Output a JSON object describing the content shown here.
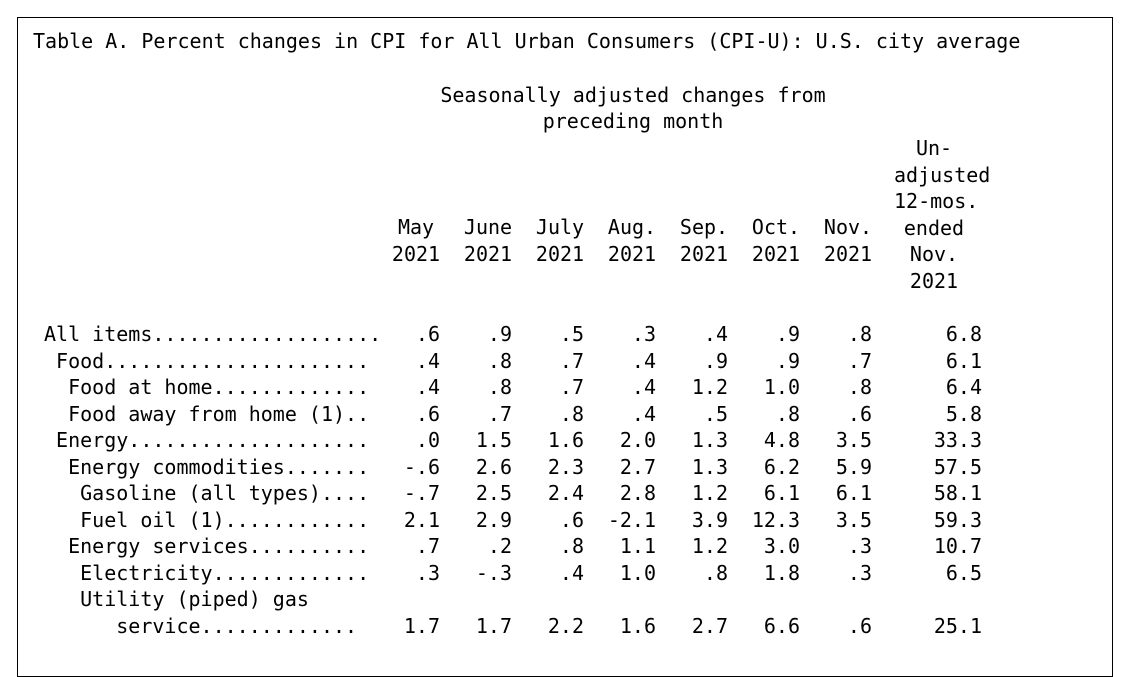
{
  "table": {
    "title": "Table A. Percent changes in CPI for All Urban Consumers (CPI-U): U.S. city average",
    "group_header": [
      "Seasonally adjusted changes from",
      "preceding month"
    ],
    "columns": [
      [
        "May",
        "2021"
      ],
      [
        "June",
        "2021"
      ],
      [
        "July",
        "2021"
      ],
      [
        "Aug.",
        "2021"
      ],
      [
        "Sep.",
        "2021"
      ],
      [
        "Oct.",
        "2021"
      ],
      [
        "Nov.",
        "2021"
      ],
      [
        "Un-",
        "adjusted",
        "12-mos.",
        "ended",
        "Nov.",
        "2021"
      ]
    ],
    "rows": [
      {
        "label": "All items...................",
        "values": [
          ".6",
          ".9",
          ".5",
          ".3",
          ".4",
          ".9",
          ".8",
          "6.8"
        ]
      },
      {
        "label": " Food......................",
        "values": [
          ".4",
          ".8",
          ".7",
          ".4",
          ".9",
          ".9",
          ".7",
          "6.1"
        ]
      },
      {
        "label": "  Food at home.............",
        "values": [
          ".4",
          ".8",
          ".7",
          ".4",
          "1.2",
          "1.0",
          ".8",
          "6.4"
        ]
      },
      {
        "label": "  Food away from home (1)..",
        "values": [
          ".6",
          ".7",
          ".8",
          ".4",
          ".5",
          ".8",
          ".6",
          "5.8"
        ]
      },
      {
        "label": " Energy....................",
        "values": [
          ".0",
          "1.5",
          "1.6",
          "2.0",
          "1.3",
          "4.8",
          "3.5",
          "33.3"
        ]
      },
      {
        "label": "  Energy commodities.......",
        "values": [
          "-.6",
          "2.6",
          "2.3",
          "2.7",
          "1.3",
          "6.2",
          "5.9",
          "57.5"
        ]
      },
      {
        "label": "   Gasoline (all types)....",
        "values": [
          "-.7",
          "2.5",
          "2.4",
          "2.8",
          "1.2",
          "6.1",
          "6.1",
          "58.1"
        ]
      },
      {
        "label": "   Fuel oil (1)............",
        "values": [
          "2.1",
          "2.9",
          ".6",
          "-2.1",
          "3.9",
          "12.3",
          "3.5",
          "59.3"
        ]
      },
      {
        "label": "  Energy services..........",
        "values": [
          ".7",
          ".2",
          ".8",
          "1.1",
          "1.2",
          "3.0",
          ".3",
          "10.7"
        ]
      },
      {
        "label": "   Electricity.............",
        "values": [
          ".3",
          "-.3",
          ".4",
          "1.0",
          ".8",
          "1.8",
          ".3",
          "6.5"
        ]
      },
      {
        "label": "   Utility (piped) gas",
        "values": []
      },
      {
        "label": "      service.............",
        "values": [
          "1.7",
          "1.7",
          "2.2",
          "1.6",
          "2.7",
          "6.6",
          ".6",
          "25.1"
        ]
      }
    ]
  }
}
